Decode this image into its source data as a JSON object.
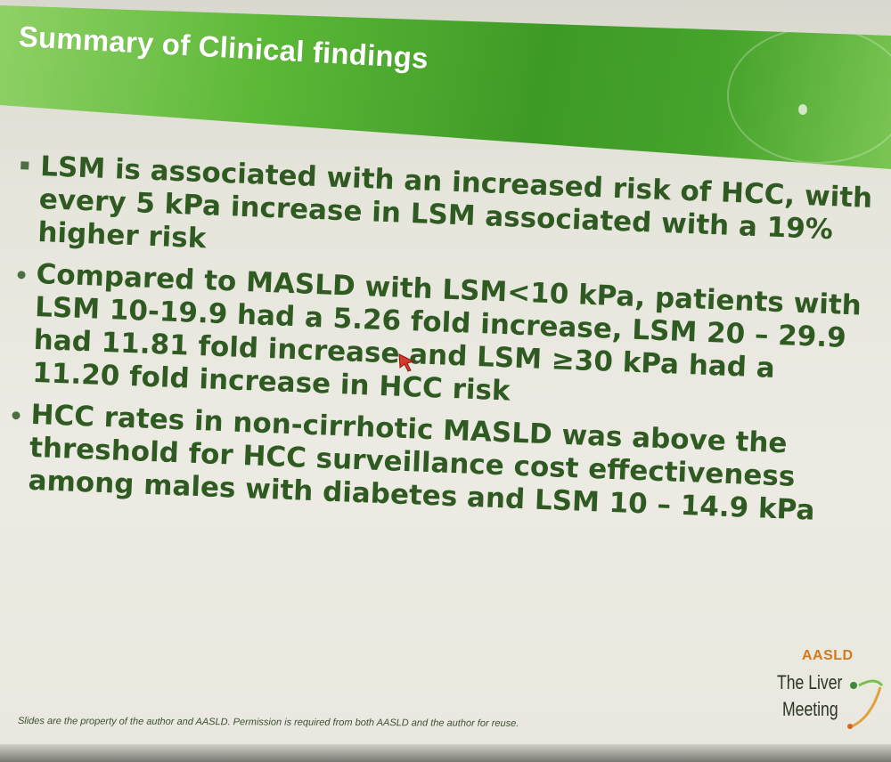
{
  "slide": {
    "title": "Summary of Clinical findings",
    "bullets": [
      {
        "marker": "square",
        "text": "LSM is associated with an increased risk of HCC, with every 5 kPa increase in LSM associated with a 19% higher risk"
      },
      {
        "marker": "dot",
        "text": "Compared to MASLD with LSM<10 kPa, patients with LSM 10-19.9 had a 5.26 fold increase, LSM 20 – 29.9 had 11.81 fold increase and LSM ≥30 kPa had a 11.20 fold increase in HCC risk"
      },
      {
        "marker": "dot",
        "text": "HCC rates in non-cirrhotic MASLD was above the threshold for HCC surveillance cost effectiveness among males with diabetes and LSM 10 – 14.9 kPa"
      }
    ],
    "footer": "Slides are the property of the author and AASLD. Permission is required from both AASLD and the author for reuse.",
    "logo": {
      "org": "AASLD",
      "line1": "The Liver",
      "line2": "Meeting",
      "icon": "liver-meeting-logo-icon"
    }
  },
  "colors": {
    "title_band": "#46a32c",
    "body_text": "#2f5a21",
    "logo_orange": "#d07a1e",
    "background": "#ecebe3"
  }
}
